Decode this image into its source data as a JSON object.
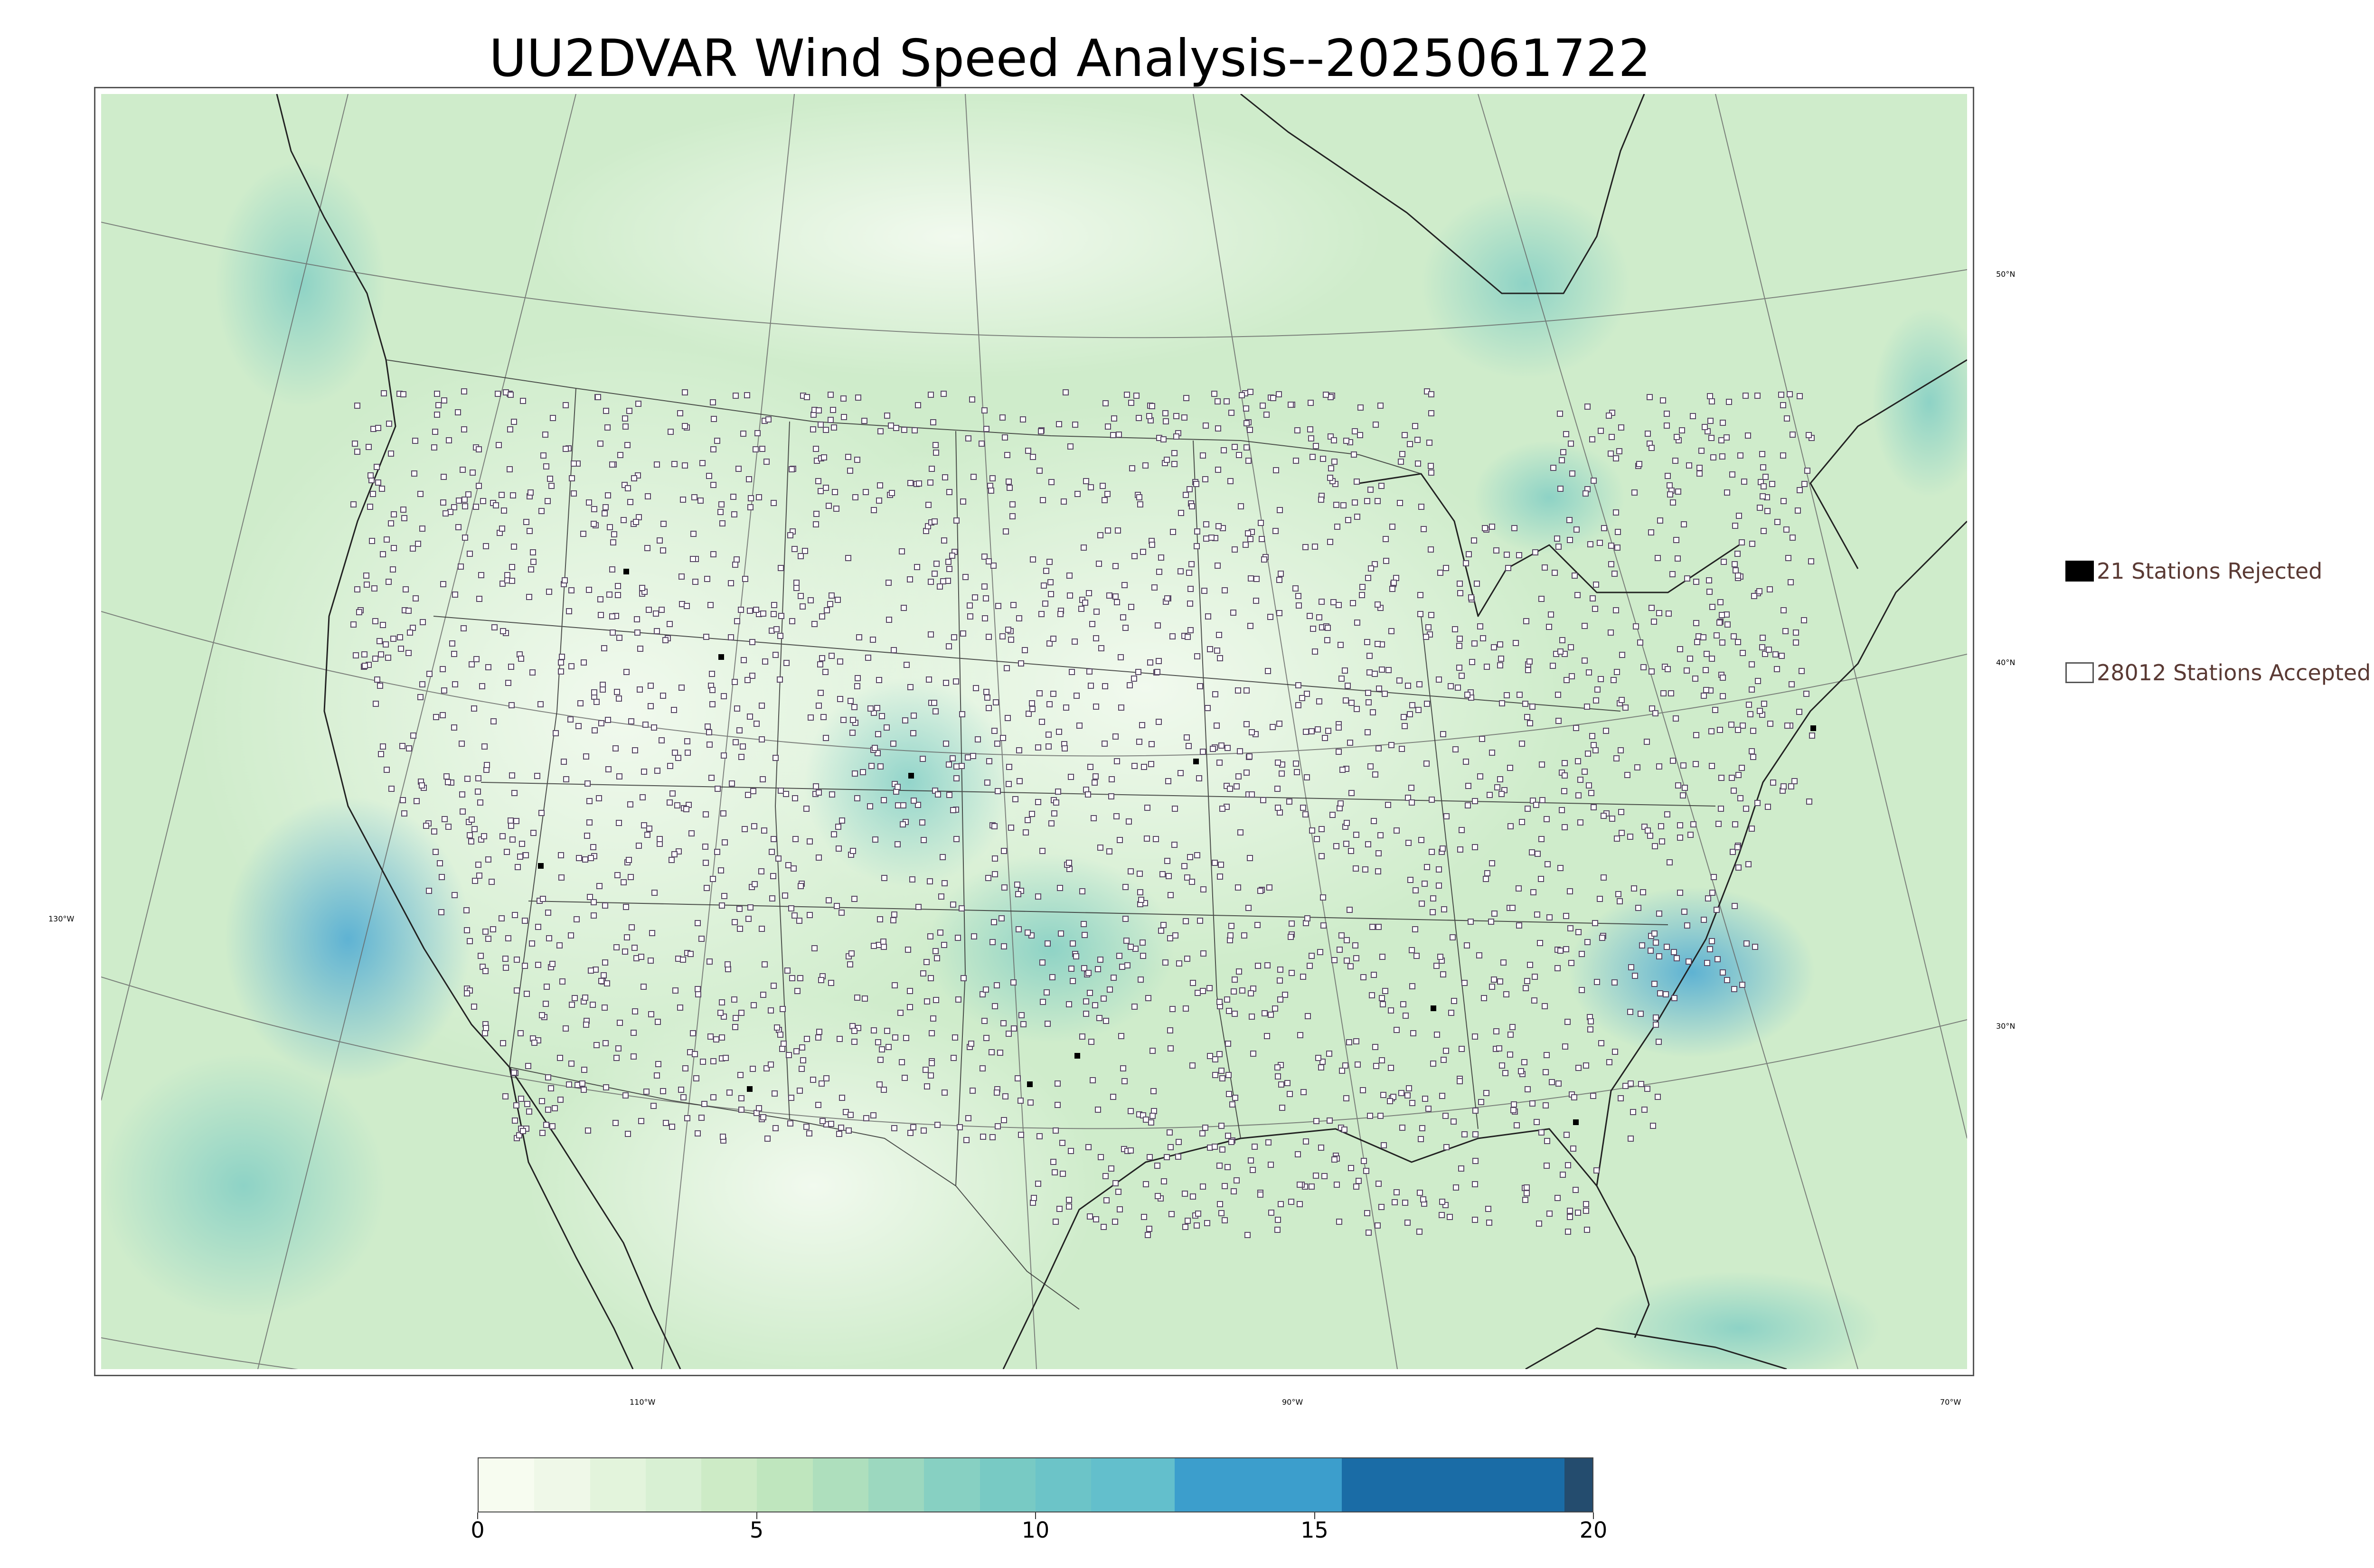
{
  "title": "UU2DVAR Wind Speed Analysis--2025061722",
  "map": {
    "projection": "Lambert conformal",
    "field": "wind speed",
    "longitude_labels": [
      "110°W",
      "90°W",
      "70°W",
      "130°W"
    ],
    "latitude_labels": [
      "50°N",
      "40°N",
      "30°N"
    ],
    "colors": {
      "background_field": "#cfeccb",
      "land_light": "#e9f6e5",
      "water_windy": "#4aa8d4",
      "coastline": "#222222",
      "gridline": "#666666",
      "station_accepted_fill": "#ffffff",
      "station_accepted_edge": "#5a4a66",
      "station_rejected": "#000000"
    }
  },
  "legend": {
    "rejected_label": "21 Stations Rejected",
    "accepted_label": "28012 Stations Accepted",
    "rejected_color": "#000000",
    "accepted_color": "#ffffff"
  },
  "colorbar": {
    "min": 0,
    "max": 20,
    "tick_labels": [
      "0",
      "5",
      "10",
      "15",
      "20"
    ],
    "bins": [
      {
        "from": 0,
        "to": 1,
        "color": "#f7fcf0"
      },
      {
        "from": 1,
        "to": 2,
        "color": "#eff8e8"
      },
      {
        "from": 2,
        "to": 3,
        "color": "#e3f4dc"
      },
      {
        "from": 3,
        "to": 4,
        "color": "#d8f0d3"
      },
      {
        "from": 4,
        "to": 5,
        "color": "#cdebc6"
      },
      {
        "from": 5,
        "to": 6,
        "color": "#bfe6be"
      },
      {
        "from": 6,
        "to": 7,
        "color": "#aedfbd"
      },
      {
        "from": 7,
        "to": 8,
        "color": "#9cd8bf"
      },
      {
        "from": 8,
        "to": 9,
        "color": "#87d0c2"
      },
      {
        "from": 9,
        "to": 10,
        "color": "#78cac4"
      },
      {
        "from": 10,
        "to": 11,
        "color": "#6cc4c8"
      },
      {
        "from": 11,
        "to": 12.5,
        "color": "#63bfcc"
      },
      {
        "from": 12.5,
        "to": 15.5,
        "color": "#3c9ecc"
      },
      {
        "from": 15.5,
        "to": 19.5,
        "color": "#1a6ca6"
      },
      {
        "from": 19.5,
        "to": 20,
        "color": "#244c6e"
      }
    ]
  }
}
